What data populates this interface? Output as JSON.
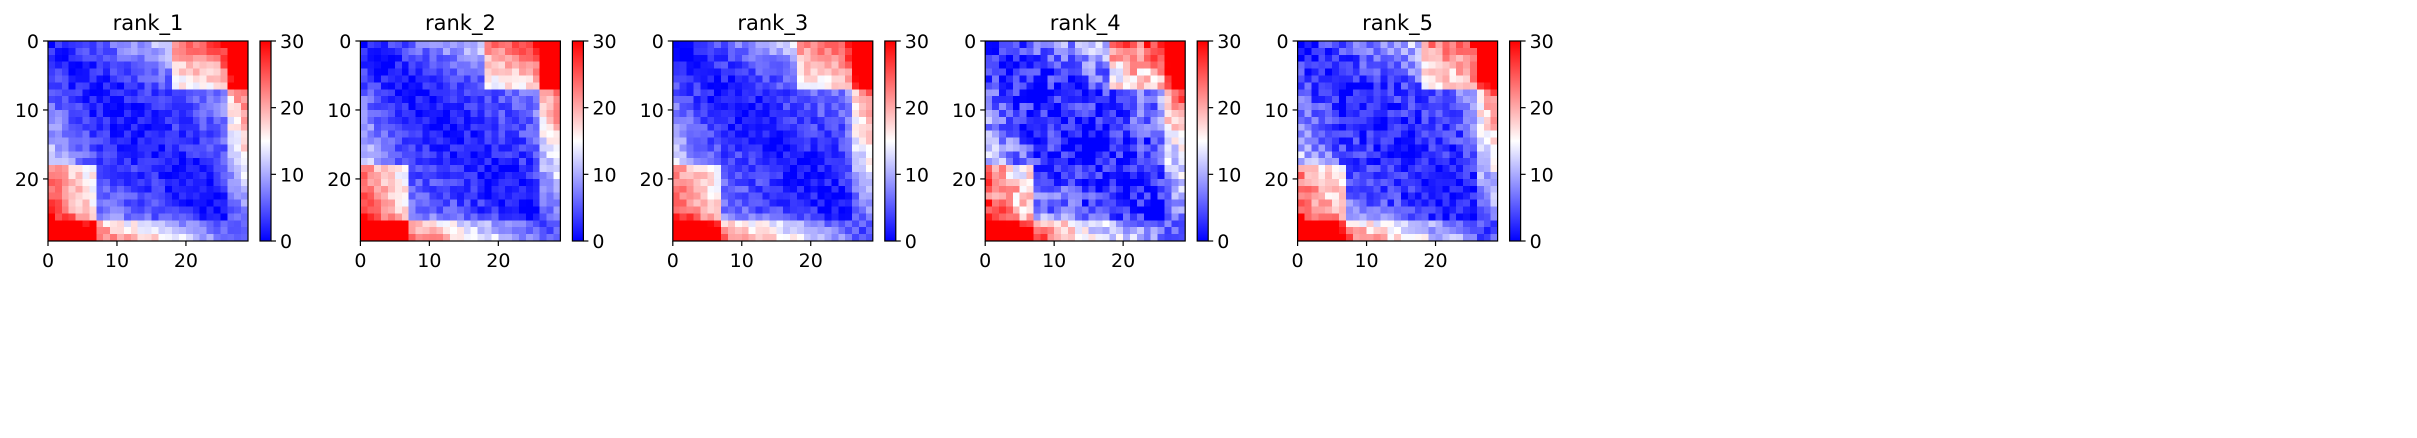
{
  "chart_data": [
    {
      "type": "heatmap",
      "title": "rank_1",
      "variant": 1,
      "n": 29,
      "xticks": [
        0,
        10,
        20
      ],
      "yticks": [
        0,
        10,
        20
      ],
      "colorbar": {
        "min": 0,
        "max": 30,
        "ticks": [
          0,
          10,
          20,
          30
        ]
      },
      "colormap": "bwr",
      "grid": false
    },
    {
      "type": "heatmap",
      "title": "rank_2",
      "variant": 2,
      "n": 29,
      "xticks": [
        0,
        10,
        20
      ],
      "yticks": [
        0,
        10,
        20
      ],
      "colorbar": {
        "min": 0,
        "max": 30,
        "ticks": [
          0,
          10,
          20,
          30
        ]
      },
      "colormap": "bwr",
      "grid": false
    },
    {
      "type": "heatmap",
      "title": "rank_3",
      "variant": 3,
      "n": 29,
      "xticks": [
        0,
        10,
        20
      ],
      "yticks": [
        0,
        10,
        20
      ],
      "colorbar": {
        "min": 0,
        "max": 30,
        "ticks": [
          0,
          10,
          20,
          30
        ]
      },
      "colormap": "bwr",
      "grid": false
    },
    {
      "type": "heatmap",
      "title": "rank_4",
      "variant": 4,
      "n": 29,
      "xticks": [
        0,
        10,
        20
      ],
      "yticks": [
        0,
        10,
        20
      ],
      "colorbar": {
        "min": 0,
        "max": 30,
        "ticks": [
          0,
          10,
          20,
          30
        ]
      },
      "colormap": "bwr",
      "grid": false
    },
    {
      "type": "heatmap",
      "title": "rank_5",
      "variant": 5,
      "n": 29,
      "xticks": [
        0,
        10,
        20
      ],
      "yticks": [
        0,
        10,
        20
      ],
      "colorbar": {
        "min": 0,
        "max": 30,
        "ticks": [
          0,
          10,
          20,
          30
        ]
      },
      "colormap": "bwr",
      "grid": false
    }
  ]
}
